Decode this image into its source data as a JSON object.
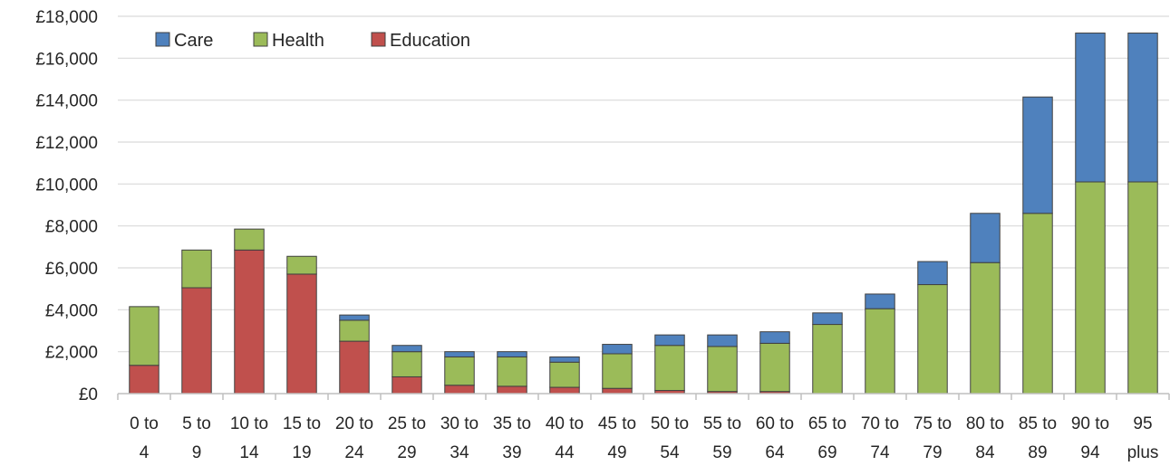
{
  "chart_data": {
    "type": "bar",
    "stacked": true,
    "categories": [
      [
        "0 to",
        "4"
      ],
      [
        "5 to",
        "9"
      ],
      [
        "10 to",
        "14"
      ],
      [
        "15 to",
        "19"
      ],
      [
        "20 to",
        "24"
      ],
      [
        "25 to",
        "29"
      ],
      [
        "30 to",
        "34"
      ],
      [
        "35 to",
        "39"
      ],
      [
        "40 to",
        "44"
      ],
      [
        "45 to",
        "49"
      ],
      [
        "50 to",
        "54"
      ],
      [
        "55 to",
        "59"
      ],
      [
        "60 to",
        "64"
      ],
      [
        "65 to",
        "69"
      ],
      [
        "70 to",
        "74"
      ],
      [
        "75 to",
        "79"
      ],
      [
        "80 to",
        "84"
      ],
      [
        "85 to",
        "89"
      ],
      [
        "90 to",
        "94"
      ],
      [
        "95",
        "plus"
      ]
    ],
    "series": [
      {
        "name": "Education",
        "color": "#c0504d",
        "values": [
          1350,
          5050,
          6850,
          5700,
          2500,
          800,
          400,
          350,
          300,
          250,
          150,
          100,
          100,
          0,
          0,
          0,
          0,
          0,
          0,
          0
        ]
      },
      {
        "name": "Health",
        "color": "#9bbb59",
        "values": [
          2800,
          1800,
          1000,
          850,
          1000,
          1200,
          1350,
          1400,
          1200,
          1650,
          2150,
          2150,
          2300,
          3300,
          4050,
          5200,
          6250,
          8600,
          10100,
          10100
        ]
      },
      {
        "name": "Care",
        "color": "#4f81bd",
        "values": [
          0,
          0,
          0,
          0,
          250,
          300,
          250,
          250,
          250,
          450,
          500,
          550,
          550,
          550,
          700,
          1100,
          2350,
          5550,
          7100,
          7100
        ]
      }
    ],
    "legend_order": [
      "Care",
      "Health",
      "Education"
    ],
    "legend_position": "top-left",
    "ylim": [
      0,
      18000
    ],
    "yticks": [
      0,
      2000,
      4000,
      6000,
      8000,
      10000,
      12000,
      14000,
      16000,
      18000
    ],
    "ytick_labels": [
      "£0",
      "£2,000",
      "£4,000",
      "£6,000",
      "£8,000",
      "£10,000",
      "£12,000",
      "£14,000",
      "£16,000",
      "£18,000"
    ],
    "grid": true,
    "title": "",
    "xlabel": "",
    "ylabel": ""
  }
}
